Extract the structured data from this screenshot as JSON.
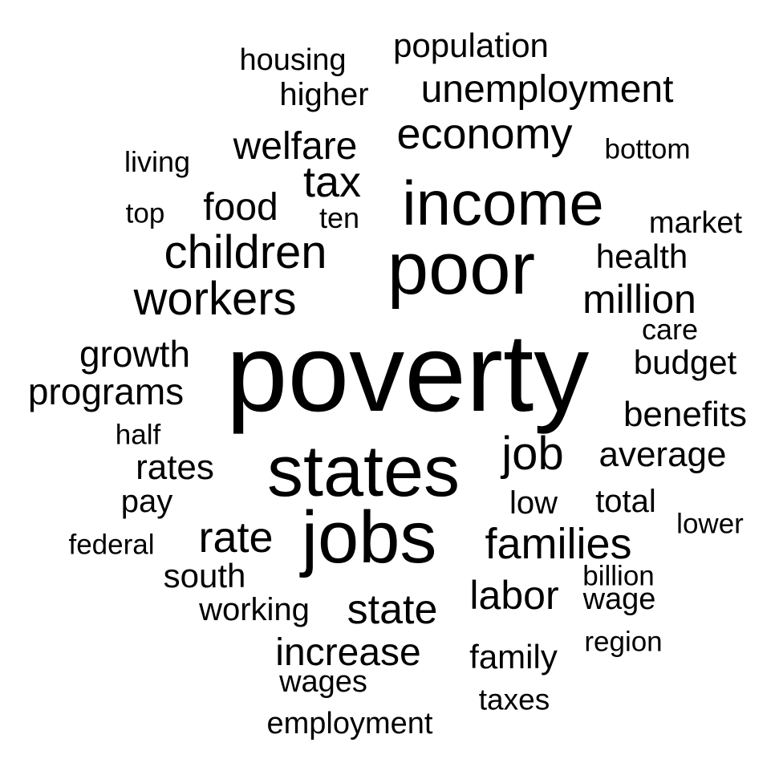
{
  "colors": {
    "background": "#ffffff",
    "text": "#000000"
  },
  "words": [
    {
      "text": "poverty",
      "weight": 100
    },
    {
      "text": "poor",
      "weight": 62
    },
    {
      "text": "jobs",
      "weight": 62
    },
    {
      "text": "states",
      "weight": 61
    },
    {
      "text": "income",
      "weight": 52
    },
    {
      "text": "workers",
      "weight": 38
    },
    {
      "text": "children",
      "weight": 38
    },
    {
      "text": "families",
      "weight": 36
    },
    {
      "text": "job",
      "weight": 34
    },
    {
      "text": "rate",
      "weight": 34
    },
    {
      "text": "tax",
      "weight": 33
    },
    {
      "text": "economy",
      "weight": 33
    },
    {
      "text": "state",
      "weight": 32
    },
    {
      "text": "labor",
      "weight": 32
    },
    {
      "text": "million",
      "weight": 32
    },
    {
      "text": "welfare",
      "weight": 31
    },
    {
      "text": "increase",
      "weight": 31
    },
    {
      "text": "unemployment",
      "weight": 30
    },
    {
      "text": "food",
      "weight": 30
    },
    {
      "text": "growth",
      "weight": 29
    },
    {
      "text": "programs",
      "weight": 29
    },
    {
      "text": "average",
      "weight": 29
    },
    {
      "text": "benefits",
      "weight": 28
    },
    {
      "text": "rates",
      "weight": 27
    },
    {
      "text": "budget",
      "weight": 27
    },
    {
      "text": "family",
      "weight": 27
    },
    {
      "text": "health",
      "weight": 27
    },
    {
      "text": "south",
      "weight": 27
    },
    {
      "text": "population",
      "weight": 27
    },
    {
      "text": "working",
      "weight": 26
    },
    {
      "text": "higher",
      "weight": 26
    },
    {
      "text": "total",
      "weight": 26
    },
    {
      "text": "low",
      "weight": 25
    },
    {
      "text": "pay",
      "weight": 25
    },
    {
      "text": "wages",
      "weight": 24
    },
    {
      "text": "market",
      "weight": 24
    },
    {
      "text": "employment",
      "weight": 24
    },
    {
      "text": "housing",
      "weight": 24
    },
    {
      "text": "wage",
      "weight": 24
    },
    {
      "text": "taxes",
      "weight": 23
    },
    {
      "text": "care",
      "weight": 23
    },
    {
      "text": "ten",
      "weight": 23
    },
    {
      "text": "living",
      "weight": 23
    },
    {
      "text": "federal",
      "weight": 22
    },
    {
      "text": "region",
      "weight": 22
    },
    {
      "text": "bottom",
      "weight": 22
    },
    {
      "text": "billion",
      "weight": 22
    },
    {
      "text": "half",
      "weight": 22
    },
    {
      "text": "lower",
      "weight": 22
    },
    {
      "text": "top",
      "weight": 22
    }
  ]
}
